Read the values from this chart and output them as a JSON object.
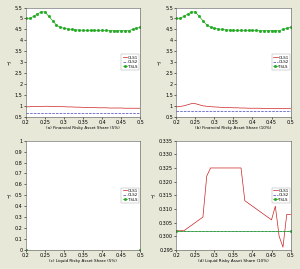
{
  "subplots": [
    {
      "title": "(a) Financial Risky Asset Share (5%)",
      "xlim": [
        0.2,
        0.5
      ],
      "ylim": [
        0.5,
        5.5
      ],
      "yticks": [
        0.5,
        1.0,
        1.5,
        2.0,
        2.5,
        3.0,
        3.5,
        4.0,
        4.5,
        5.0,
        5.5
      ],
      "xticks": [
        0.2,
        0.25,
        0.3,
        0.35,
        0.4,
        0.45,
        0.5
      ],
      "series": [
        {
          "label": "OLS1",
          "color": "#cc2222",
          "linestyle": "-",
          "marker": null,
          "linewidth": 0.5,
          "x": [
            0.2,
            0.21,
            0.22,
            0.23,
            0.24,
            0.25,
            0.26,
            0.27,
            0.28,
            0.29,
            0.3,
            0.31,
            0.32,
            0.33,
            0.34,
            0.35,
            0.36,
            0.37,
            0.38,
            0.39,
            0.4,
            0.41,
            0.42,
            0.43,
            0.44,
            0.45,
            0.46,
            0.47,
            0.48,
            0.49,
            0.5
          ],
          "y": [
            0.95,
            0.96,
            0.97,
            0.97,
            0.97,
            0.98,
            0.98,
            0.97,
            0.97,
            0.96,
            0.96,
            0.95,
            0.95,
            0.94,
            0.94,
            0.93,
            0.93,
            0.92,
            0.92,
            0.91,
            0.91,
            0.91,
            0.9,
            0.9,
            0.9,
            0.9,
            0.89,
            0.89,
            0.89,
            0.89,
            0.89
          ]
        },
        {
          "label": "OLS2",
          "color": "#4444bb",
          "linestyle": "--",
          "marker": null,
          "linewidth": 0.5,
          "x": [
            0.2,
            0.21,
            0.22,
            0.23,
            0.24,
            0.25,
            0.3,
            0.35,
            0.4,
            0.45,
            0.5
          ],
          "y": [
            0.65,
            0.65,
            0.65,
            0.65,
            0.65,
            0.65,
            0.65,
            0.65,
            0.65,
            0.65,
            0.65
          ]
        },
        {
          "label": "TSLS",
          "color": "#22aa22",
          "linestyle": "-",
          "marker": "s",
          "markersize": 1.0,
          "linewidth": 0.5,
          "x": [
            0.2,
            0.21,
            0.22,
            0.23,
            0.24,
            0.25,
            0.26,
            0.27,
            0.28,
            0.29,
            0.3,
            0.31,
            0.32,
            0.33,
            0.34,
            0.35,
            0.36,
            0.37,
            0.38,
            0.39,
            0.4,
            0.41,
            0.42,
            0.43,
            0.44,
            0.45,
            0.46,
            0.47,
            0.48,
            0.49,
            0.5
          ],
          "y": [
            5.0,
            5.0,
            5.1,
            5.2,
            5.3,
            5.3,
            5.1,
            4.9,
            4.7,
            4.6,
            4.55,
            4.52,
            4.5,
            4.48,
            4.47,
            4.46,
            4.45,
            4.45,
            4.45,
            4.45,
            4.45,
            4.45,
            4.44,
            4.44,
            4.44,
            4.44,
            4.44,
            4.44,
            4.5,
            4.55,
            4.6
          ]
        }
      ]
    },
    {
      "title": "(b) Financial Risky Asset Share (10%)",
      "xlim": [
        0.2,
        0.5
      ],
      "ylim": [
        0.5,
        5.5
      ],
      "yticks": [
        0.5,
        1.0,
        1.5,
        2.0,
        2.5,
        3.0,
        3.5,
        4.0,
        4.5,
        5.0,
        5.5
      ],
      "xticks": [
        0.2,
        0.25,
        0.3,
        0.35,
        0.4,
        0.45,
        0.5
      ],
      "series": [
        {
          "label": "OLS1",
          "color": "#cc2222",
          "linestyle": "-",
          "marker": null,
          "linewidth": 0.5,
          "x": [
            0.2,
            0.21,
            0.22,
            0.23,
            0.24,
            0.25,
            0.26,
            0.27,
            0.28,
            0.29,
            0.3,
            0.31,
            0.32,
            0.33,
            0.34,
            0.35,
            0.36,
            0.37,
            0.38,
            0.39,
            0.4,
            0.41,
            0.42,
            0.43,
            0.44,
            0.45,
            0.46,
            0.47,
            0.48,
            0.49,
            0.5
          ],
          "y": [
            0.95,
            0.97,
            1.0,
            1.05,
            1.1,
            1.1,
            1.05,
            1.0,
            0.98,
            0.96,
            0.95,
            0.94,
            0.93,
            0.93,
            0.92,
            0.91,
            0.91,
            0.9,
            0.9,
            0.89,
            0.89,
            0.89,
            0.89,
            0.88,
            0.88,
            0.88,
            0.88,
            0.87,
            0.87,
            0.87,
            0.87
          ]
        },
        {
          "label": "OLS2",
          "color": "#4444bb",
          "linestyle": "--",
          "marker": null,
          "linewidth": 0.5,
          "x": [
            0.2,
            0.21,
            0.22,
            0.23,
            0.24,
            0.25,
            0.26,
            0.27,
            0.28,
            0.29,
            0.3,
            0.35,
            0.4,
            0.45,
            0.5
          ],
          "y": [
            0.76,
            0.76,
            0.76,
            0.76,
            0.76,
            0.76,
            0.76,
            0.76,
            0.76,
            0.76,
            0.76,
            0.76,
            0.76,
            0.76,
            0.76
          ]
        },
        {
          "label": "TSLS",
          "color": "#22aa22",
          "linestyle": "-",
          "marker": "s",
          "markersize": 1.0,
          "linewidth": 0.5,
          "x": [
            0.2,
            0.21,
            0.22,
            0.23,
            0.24,
            0.25,
            0.26,
            0.27,
            0.28,
            0.29,
            0.3,
            0.31,
            0.32,
            0.33,
            0.34,
            0.35,
            0.36,
            0.37,
            0.38,
            0.39,
            0.4,
            0.41,
            0.42,
            0.43,
            0.44,
            0.45,
            0.46,
            0.47,
            0.48,
            0.49,
            0.5
          ],
          "y": [
            5.0,
            5.0,
            5.1,
            5.2,
            5.3,
            5.3,
            5.1,
            4.9,
            4.7,
            4.6,
            4.55,
            4.52,
            4.5,
            4.48,
            4.47,
            4.46,
            4.45,
            4.45,
            4.45,
            4.45,
            4.45,
            4.45,
            4.44,
            4.44,
            4.44,
            4.44,
            4.44,
            4.44,
            4.5,
            4.55,
            4.6
          ]
        }
      ]
    },
    {
      "title": "(c) Liquid Risky Asset Share (5%)",
      "xlim": [
        0.2,
        0.5
      ],
      "ylim": [
        0.0,
        1.0
      ],
      "yticks": [
        0.0,
        0.1,
        0.2,
        0.3,
        0.4,
        0.5,
        0.6,
        0.7,
        0.8,
        0.9,
        1.0
      ],
      "xticks": [
        0.2,
        0.25,
        0.3,
        0.35,
        0.4,
        0.45,
        0.5
      ],
      "series": [
        {
          "label": "OLS1",
          "color": "#cc2222",
          "linestyle": "-",
          "marker": null,
          "linewidth": 0.5,
          "x": [
            0.2,
            0.5
          ],
          "y": [
            0.0,
            0.0
          ]
        },
        {
          "label": "OLS2",
          "color": "#4444bb",
          "linestyle": "--",
          "marker": null,
          "linewidth": 0.5,
          "x": [
            0.2,
            0.5
          ],
          "y": [
            0.0,
            0.0
          ]
        },
        {
          "label": "TSLS",
          "color": "#22aa22",
          "linestyle": "-",
          "marker": "s",
          "markersize": 1.0,
          "linewidth": 0.5,
          "x": [
            0.2,
            0.5
          ],
          "y": [
            0.0,
            0.0
          ]
        }
      ]
    },
    {
      "title": "(d) Liquid Risky Asset Share (10%)",
      "xlim": [
        0.2,
        0.5
      ],
      "ylim": [
        0.295,
        0.335
      ],
      "yticks": [
        0.295,
        0.3,
        0.305,
        0.31,
        0.315,
        0.32,
        0.325,
        0.33,
        0.335
      ],
      "xticks": [
        0.2,
        0.25,
        0.3,
        0.35,
        0.4,
        0.45,
        0.5
      ],
      "series": [
        {
          "label": "OLS1",
          "color": "#cc2222",
          "linestyle": "-",
          "marker": null,
          "linewidth": 0.5,
          "x": [
            0.2,
            0.21,
            0.22,
            0.23,
            0.24,
            0.25,
            0.26,
            0.27,
            0.28,
            0.29,
            0.3,
            0.31,
            0.32,
            0.33,
            0.34,
            0.35,
            0.36,
            0.37,
            0.38,
            0.39,
            0.4,
            0.41,
            0.42,
            0.43,
            0.44,
            0.45,
            0.46,
            0.47,
            0.48,
            0.49,
            0.5
          ],
          "y": [
            0.302,
            0.302,
            0.302,
            0.303,
            0.304,
            0.305,
            0.306,
            0.307,
            0.322,
            0.325,
            0.325,
            0.325,
            0.325,
            0.325,
            0.325,
            0.325,
            0.325,
            0.325,
            0.313,
            0.312,
            0.311,
            0.31,
            0.309,
            0.308,
            0.307,
            0.306,
            0.311,
            0.3,
            0.296,
            0.308,
            0.308
          ]
        },
        {
          "label": "OLS2",
          "color": "#4444bb",
          "linestyle": "--",
          "marker": null,
          "linewidth": 0.5,
          "x": [
            0.2,
            0.5
          ],
          "y": [
            0.302,
            0.302
          ]
        },
        {
          "label": "TSLS",
          "color": "#22aa22",
          "linestyle": "-",
          "marker": "s",
          "markersize": 1.0,
          "linewidth": 0.5,
          "x": [
            0.2,
            0.5
          ],
          "y": [
            0.302,
            0.302
          ]
        }
      ]
    }
  ],
  "background_color": "#e8e8d8",
  "plot_bg_color": "#ffffff",
  "tick_fontsize": 3.5,
  "label_fontsize": 3.0,
  "legend_fontsize": 2.8
}
